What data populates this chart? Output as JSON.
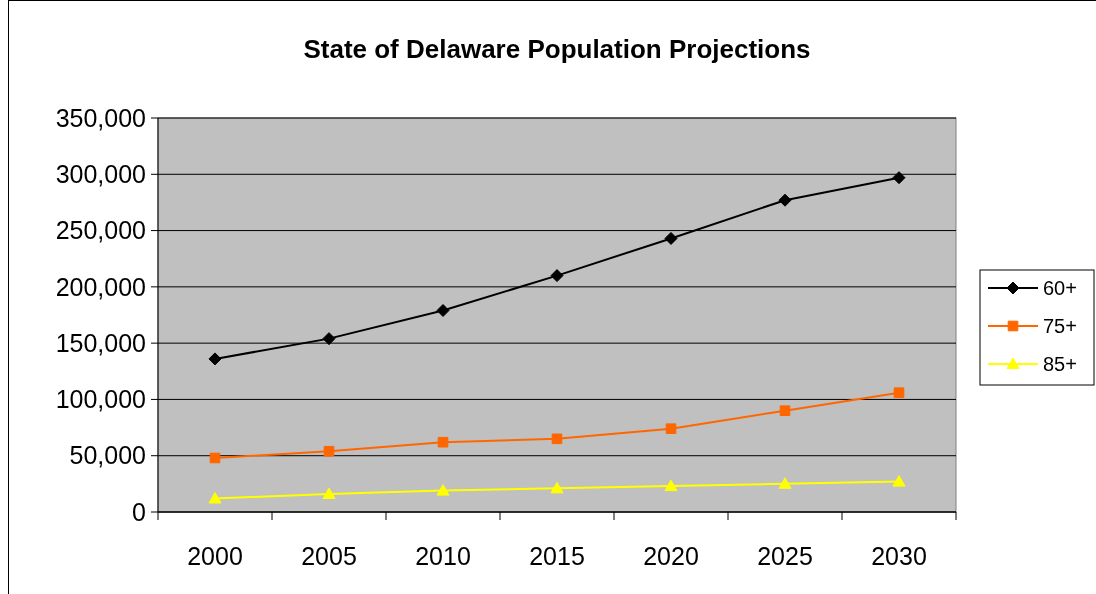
{
  "chart_data": {
    "type": "line",
    "title": "State of Delaware Population Projections",
    "categories": [
      "2000",
      "2005",
      "2010",
      "2015",
      "2020",
      "2025",
      "2030"
    ],
    "series": [
      {
        "name": "60+",
        "color": "#000000",
        "marker": "diamond",
        "values": [
          136000,
          154000,
          179000,
          210000,
          243000,
          277000,
          297000
        ]
      },
      {
        "name": "75+",
        "color": "#ff6600",
        "marker": "square",
        "values": [
          48000,
          54000,
          62000,
          65000,
          74000,
          90000,
          106000
        ]
      },
      {
        "name": "85+",
        "color": "#ffff00",
        "marker": "triangle",
        "values": [
          12000,
          16000,
          19000,
          21000,
          23000,
          25000,
          27000
        ]
      }
    ],
    "ylim": [
      0,
      350000
    ],
    "yticks": [
      {
        "value": 0,
        "label": "0"
      },
      {
        "value": 50000,
        "label": "50,000"
      },
      {
        "value": 100000,
        "label": "100,000"
      },
      {
        "value": 150000,
        "label": "150,000"
      },
      {
        "value": 200000,
        "label": "200,000"
      },
      {
        "value": 250000,
        "label": "250,000"
      },
      {
        "value": 300000,
        "label": "300,000"
      },
      {
        "value": 350000,
        "label": "350,000"
      }
    ],
    "grid": "y",
    "legend": "right",
    "line_style": "solid"
  }
}
